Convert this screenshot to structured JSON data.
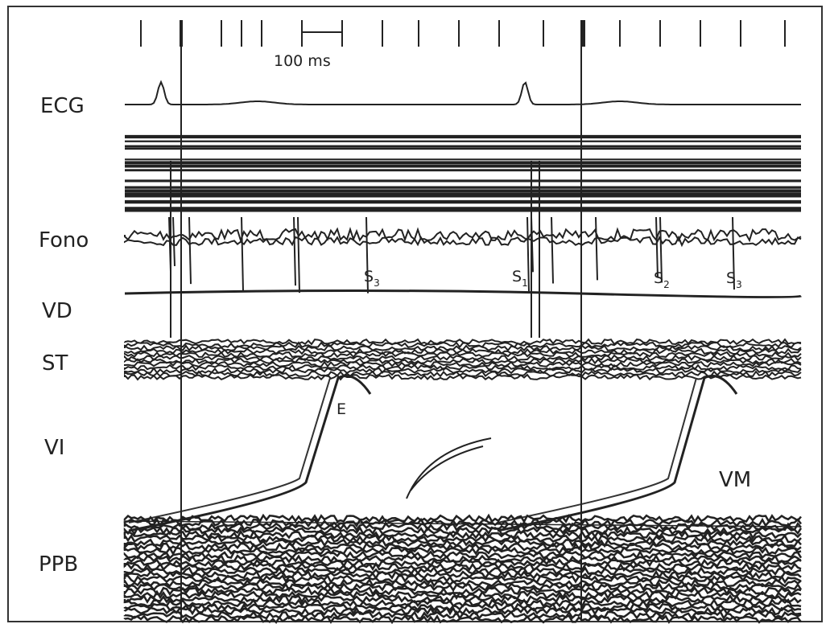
{
  "scale_bar": "100 ms",
  "channels": [
    "ECG",
    "Fono",
    "VD",
    "ST",
    "VI",
    "PPB"
  ],
  "sounds": [
    {
      "base": "S",
      "sub": "3"
    },
    {
      "base": "S",
      "sub": "1"
    },
    {
      "base": "S",
      "sub": "2"
    },
    {
      "base": "S",
      "sub": "3"
    }
  ],
  "markers": [
    "E",
    "VM"
  ]
}
